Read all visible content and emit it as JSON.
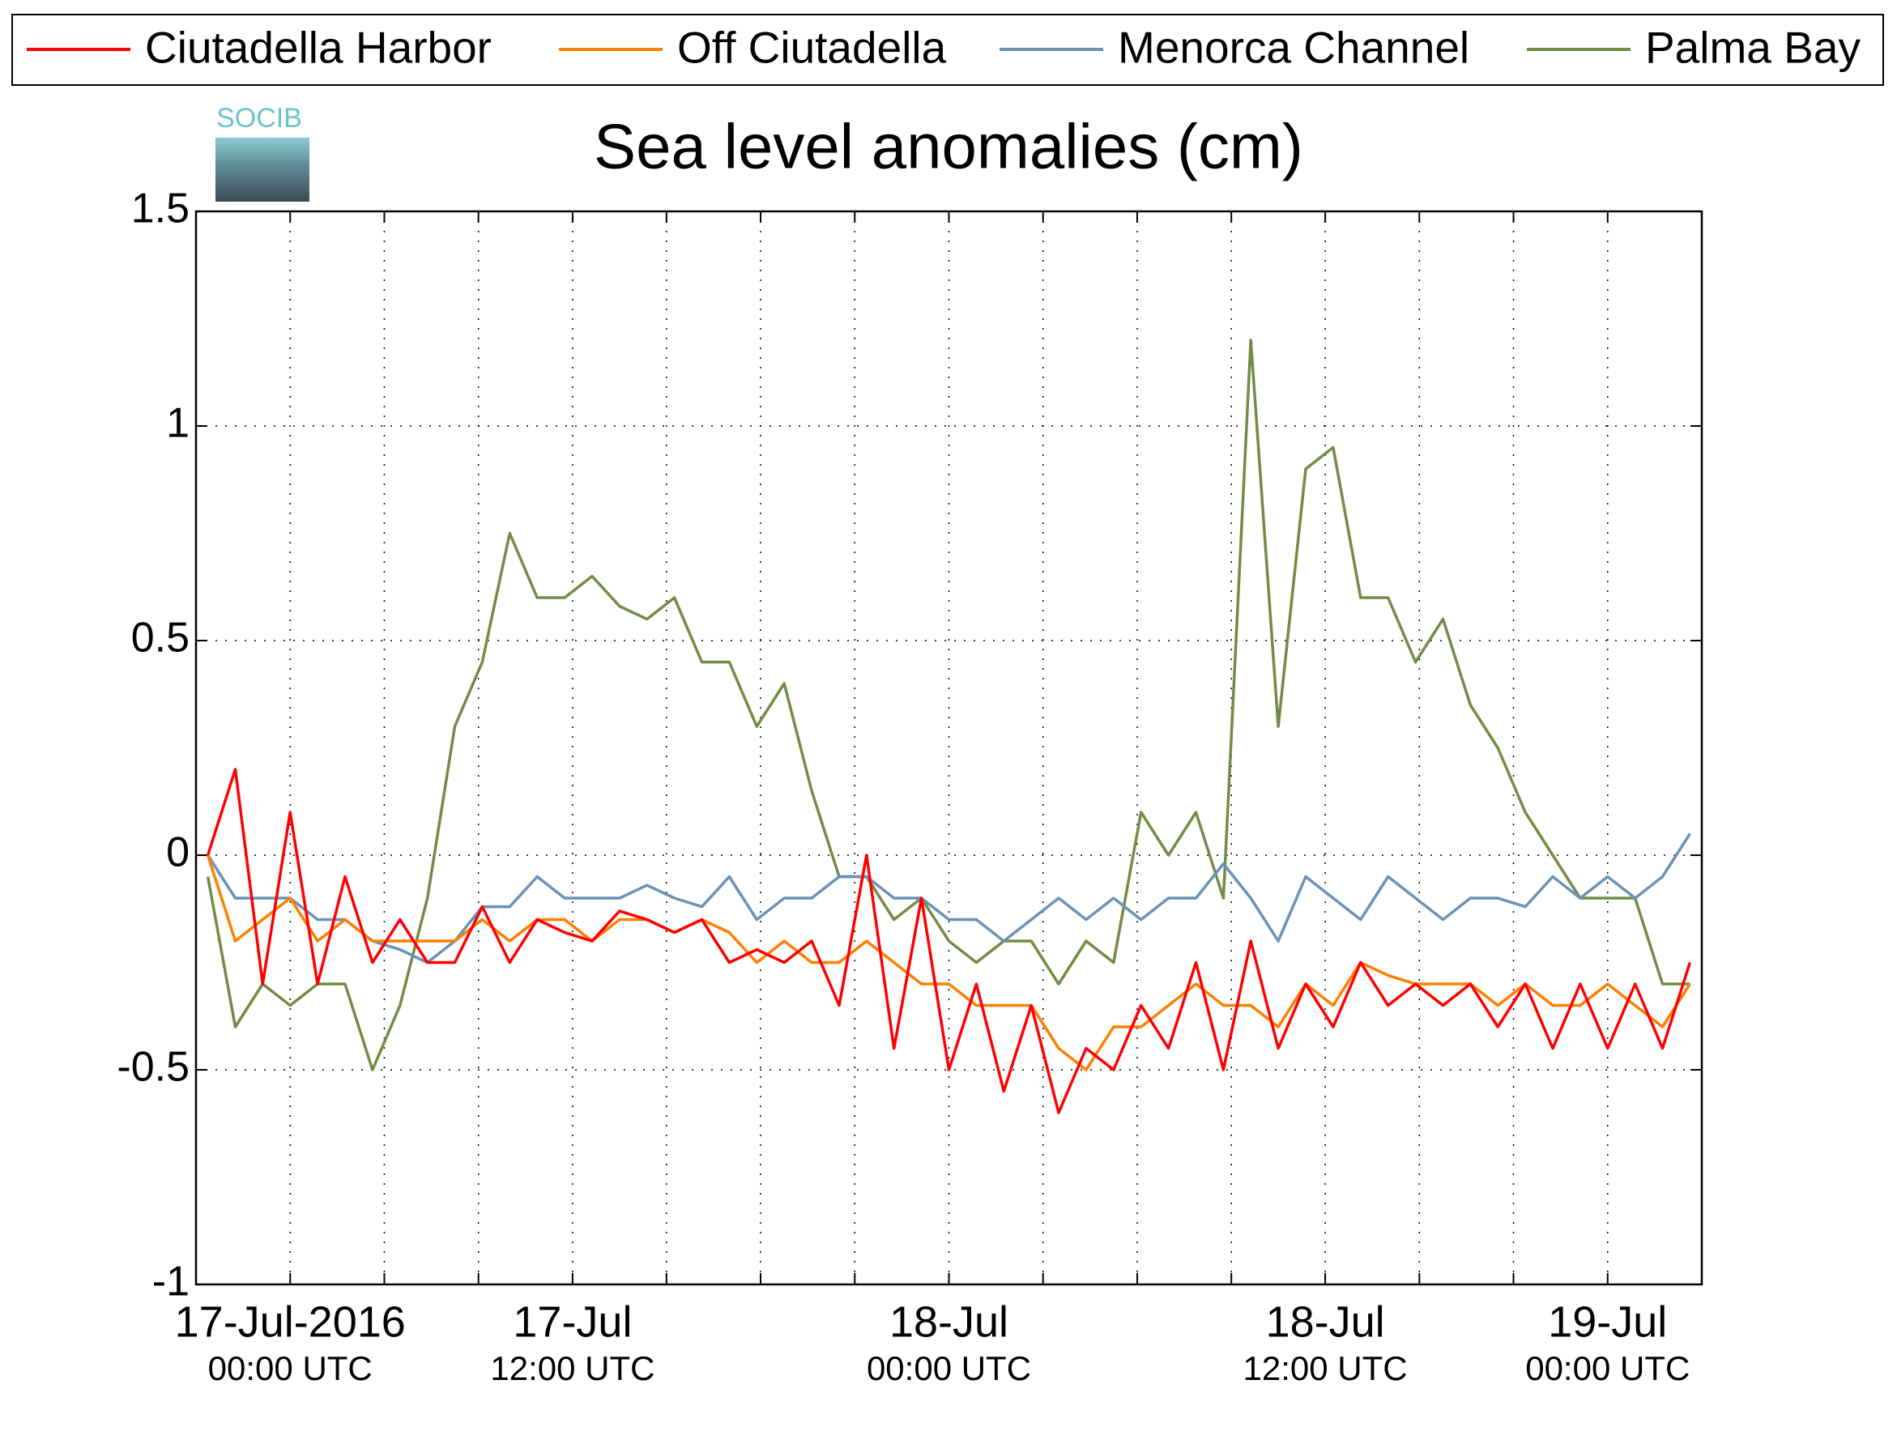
{
  "chart_data": {
    "type": "line",
    "title": "Sea level anomalies (cm)",
    "logo": "SOCIB",
    "x": [
      -3,
      -2,
      -1,
      0,
      1,
      2,
      3,
      4,
      5,
      6,
      7,
      8,
      9,
      10,
      11,
      12,
      13,
      14,
      15,
      16,
      17,
      18,
      19,
      20,
      21,
      22,
      23,
      24,
      25,
      26,
      27,
      28,
      29,
      30,
      31,
      32,
      33,
      34,
      35,
      36,
      37,
      38,
      39,
      40,
      41,
      42,
      43,
      44,
      45,
      46,
      47,
      48,
      49,
      50,
      51
    ],
    "xlim": [
      -3.43,
      51.43
    ],
    "xticks": [
      0,
      3.43,
      6.86,
      10.29,
      13.71,
      17.14,
      20.57,
      24,
      27.43,
      30.86,
      34.29,
      37.71,
      41.14,
      44.57,
      48
    ],
    "xlabels": [
      {
        "value": 0,
        "label": "17-Jul-2016",
        "sublabel": "00:00 UTC"
      },
      {
        "value": 10.29,
        "label": "17-Jul",
        "sublabel": "12:00 UTC"
      },
      {
        "value": 24,
        "label": "18-Jul",
        "sublabel": "00:00 UTC"
      },
      {
        "value": 37.71,
        "label": "18-Jul",
        "sublabel": "12:00 UTC"
      },
      {
        "value": 48,
        "label": "19-Jul",
        "sublabel": "00:00 UTC"
      }
    ],
    "ylim": [
      -1,
      1.5
    ],
    "yticks": [
      -1,
      -0.5,
      0,
      0.5,
      1,
      1.5
    ],
    "grid": true,
    "legend": "top",
    "series": [
      {
        "name": "Ciutadella Harbor",
        "color": "#ff0000",
        "values": [
          0.0,
          0.2,
          -0.3,
          0.1,
          -0.3,
          -0.05,
          -0.25,
          -0.15,
          -0.25,
          -0.25,
          -0.12,
          -0.25,
          -0.15,
          -0.18,
          -0.2,
          -0.13,
          -0.15,
          -0.18,
          -0.15,
          -0.25,
          -0.22,
          -0.25,
          -0.2,
          -0.35,
          0.0,
          -0.45,
          -0.1,
          -0.5,
          -0.3,
          -0.55,
          -0.35,
          -0.6,
          -0.45,
          -0.5,
          -0.35,
          -0.45,
          -0.25,
          -0.5,
          -0.2,
          -0.45,
          -0.3,
          -0.4,
          -0.25,
          -0.35,
          -0.3,
          -0.35,
          -0.3,
          -0.4,
          -0.3,
          -0.45,
          -0.3,
          -0.45,
          -0.3,
          -0.45,
          -0.25
        ]
      },
      {
        "name": "Off Ciutadella",
        "color": "#ff8000",
        "values": [
          0.0,
          -0.2,
          -0.15,
          -0.1,
          -0.2,
          -0.15,
          -0.2,
          -0.2,
          -0.2,
          -0.2,
          -0.15,
          -0.2,
          -0.15,
          -0.15,
          -0.2,
          -0.15,
          -0.15,
          -0.18,
          -0.15,
          -0.18,
          -0.25,
          -0.2,
          -0.25,
          -0.25,
          -0.2,
          -0.25,
          -0.3,
          -0.3,
          -0.35,
          -0.35,
          -0.35,
          -0.45,
          -0.5,
          -0.4,
          -0.4,
          -0.35,
          -0.3,
          -0.35,
          -0.35,
          -0.4,
          -0.3,
          -0.35,
          -0.25,
          -0.28,
          -0.3,
          -0.3,
          -0.3,
          -0.35,
          -0.3,
          -0.35,
          -0.35,
          -0.3,
          -0.35,
          -0.4,
          -0.3
        ]
      },
      {
        "name": "Menorca Channel",
        "color": "#6b92b5",
        "values": [
          0.0,
          -0.1,
          -0.1,
          -0.1,
          -0.15,
          -0.15,
          -0.2,
          -0.22,
          -0.25,
          -0.2,
          -0.12,
          -0.12,
          -0.05,
          -0.1,
          -0.1,
          -0.1,
          -0.07,
          -0.1,
          -0.12,
          -0.05,
          -0.15,
          -0.1,
          -0.1,
          -0.05,
          -0.05,
          -0.1,
          -0.1,
          -0.15,
          -0.15,
          -0.2,
          -0.15,
          -0.1,
          -0.15,
          -0.1,
          -0.15,
          -0.1,
          -0.1,
          -0.02,
          -0.1,
          -0.2,
          -0.05,
          -0.1,
          -0.15,
          -0.05,
          -0.1,
          -0.15,
          -0.1,
          -0.1,
          -0.12,
          -0.05,
          -0.1,
          -0.05,
          -0.1,
          -0.05,
          0.05
        ]
      },
      {
        "name": "Palma Bay",
        "color": "#738c45",
        "values": [
          -0.05,
          -0.4,
          -0.3,
          -0.35,
          -0.3,
          -0.3,
          -0.5,
          -0.35,
          -0.1,
          0.3,
          0.45,
          0.75,
          0.6,
          0.6,
          0.65,
          0.58,
          0.55,
          0.6,
          0.45,
          0.45,
          0.3,
          0.4,
          0.15,
          -0.05,
          -0.05,
          -0.15,
          -0.1,
          -0.2,
          -0.25,
          -0.2,
          -0.2,
          -0.3,
          -0.2,
          -0.25,
          0.1,
          0.0,
          0.1,
          -0.1,
          1.2,
          0.3,
          0.9,
          0.95,
          0.6,
          0.6,
          0.45,
          0.55,
          0.35,
          0.25,
          0.1,
          0.0,
          -0.1,
          -0.1,
          -0.1,
          -0.3,
          -0.3
        ]
      }
    ]
  }
}
